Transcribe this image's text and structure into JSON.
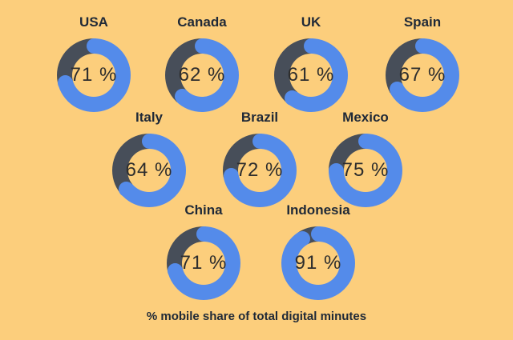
{
  "caption": "% mobile share of total digital minutes",
  "colors": {
    "background": "#fcce7c",
    "arc_fill": "#548bea",
    "arc_remainder": "#474e59",
    "label_text": "#1f2937",
    "value_text": "#2d2d2d"
  },
  "chart_data": {
    "type": "pie",
    "subtype": "donut-small-multiples",
    "title": "% mobile share of total digital minutes",
    "unit": "%",
    "value_range": [
      0,
      100
    ],
    "start_angle_deg": 0,
    "direction": "clockwise",
    "legend_position": "none",
    "layout_rows": [
      4,
      3,
      2
    ],
    "series": [
      {
        "name": "USA",
        "value": 71
      },
      {
        "name": "Canada",
        "value": 62
      },
      {
        "name": "UK",
        "value": 61
      },
      {
        "name": "Spain",
        "value": 67
      },
      {
        "name": "Italy",
        "value": 64
      },
      {
        "name": "Brazil",
        "value": 72
      },
      {
        "name": "Mexico",
        "value": 75
      },
      {
        "name": "China",
        "value": 71
      },
      {
        "name": "Indonesia",
        "value": 91
      }
    ]
  }
}
